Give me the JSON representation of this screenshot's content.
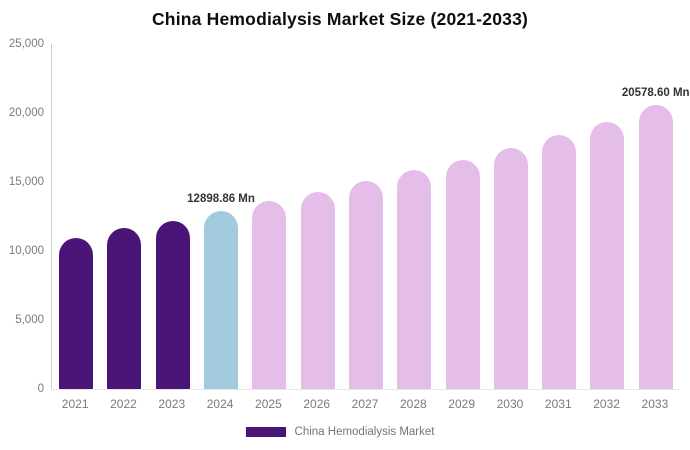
{
  "chart": {
    "title": "China Hemodialysis Market Size (2021-2033)",
    "legend": {
      "label": "China Hemodialysis Market",
      "swatch_color": "#4B1577"
    }
  },
  "chart_data": {
    "type": "bar",
    "title": "China Hemodialysis Market Size (2021-2033)",
    "xlabel": "",
    "ylabel": "",
    "unit": "Mn",
    "categories": [
      "2021",
      "2022",
      "2023",
      "2024",
      "2025",
      "2026",
      "2027",
      "2028",
      "2029",
      "2030",
      "2031",
      "2032",
      "2033"
    ],
    "series": [
      {
        "name": "China Hemodialysis Market",
        "values": [
          10940,
          11670,
          12200,
          12898.86,
          13600,
          14300,
          15080,
          15870,
          16600,
          17450,
          18400,
          19350,
          20578.6
        ]
      }
    ],
    "bar_colors": [
      "#4B1577",
      "#4B1577",
      "#4B1577",
      "#A1CADF",
      "#E4BEE9",
      "#E4BEE9",
      "#E4BEE9",
      "#E4BEE9",
      "#E4BEE9",
      "#E4BEE9",
      "#E4BEE9",
      "#E4BEE9",
      "#E4BEE9"
    ],
    "ylim": [
      0,
      25000
    ],
    "ytick_labels": [
      "0",
      "5,000",
      "10,000",
      "15,000",
      "20,000",
      "25,000"
    ],
    "ytick_values": [
      0,
      5000,
      10000,
      15000,
      20000,
      25000
    ],
    "grid": false,
    "legend_position": "bottom",
    "annotations": [
      {
        "category_index": 3,
        "text": "12898.86 Mn"
      },
      {
        "category_index": 12,
        "text": "20578.60 Mn"
      }
    ]
  }
}
